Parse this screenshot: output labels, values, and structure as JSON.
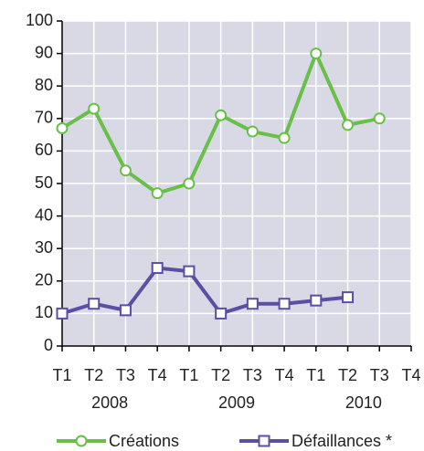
{
  "chart_data": {
    "type": "line",
    "categories": [
      "T1",
      "T2",
      "T3",
      "T4",
      "T1",
      "T2",
      "T3",
      "T4",
      "T1",
      "T2",
      "T3",
      "T4"
    ],
    "category_groups": [
      "2008",
      "2009",
      "2010"
    ],
    "series": [
      {
        "name": "Créations",
        "color": "#6abf4b",
        "marker": "circle",
        "values": [
          67,
          73,
          54,
          47,
          50,
          71,
          66,
          64,
          90,
          68,
          70,
          null
        ]
      },
      {
        "name": "Défaillances *",
        "color": "#5b4ea3",
        "marker": "square",
        "values": [
          10,
          13,
          11,
          24,
          23,
          10,
          13,
          13,
          14,
          15,
          null,
          null
        ]
      }
    ],
    "ylim": [
      0,
      100
    ],
    "yticks": [
      0,
      10,
      20,
      30,
      40,
      50,
      60,
      70,
      80,
      90,
      100
    ],
    "grid": true,
    "plot_background": "#d9d9e6",
    "legend": "bottom"
  }
}
